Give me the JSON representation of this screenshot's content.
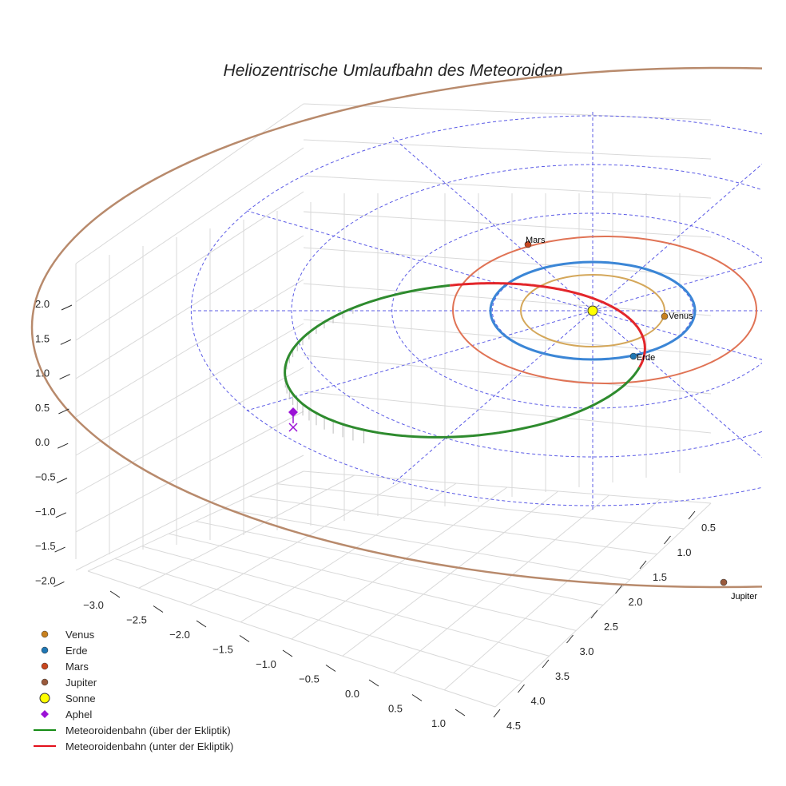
{
  "chart_data": {
    "type": "3d-line",
    "title": "Heliozentrische Umlaufbahn des Meteoroiden",
    "x_ticks": [
      "−3.0",
      "−2.5",
      "−2.0",
      "−1.5",
      "−1.0",
      "−0.5",
      "0.0",
      "0.5",
      "1.0"
    ],
    "y_ticks": [
      "0.5",
      "1.0",
      "1.5",
      "2.0",
      "2.5",
      "3.0",
      "3.5",
      "4.0",
      "4.5"
    ],
    "z_ticks": [
      "2.0",
      "1.5",
      "1.0",
      "0.5",
      "0.0",
      "−0.5",
      "−1.0",
      "−1.5",
      "−2.0"
    ],
    "xlim": [
      -3.0,
      1.0
    ],
    "ylim": [
      0.5,
      4.5
    ],
    "zlim": [
      -2.0,
      2.0
    ],
    "planets": [
      {
        "name": "Venus",
        "label": "Venus",
        "radius_au": 0.72,
        "color": "#c8811f"
      },
      {
        "name": "Erde",
        "label": "Erde",
        "radius_au": 1.0,
        "color": "#1f77b4"
      },
      {
        "name": "Mars",
        "label": "Mars",
        "radius_au": 1.52,
        "color": "#c8471f"
      },
      {
        "name": "Jupiter",
        "label": "Jupiter",
        "radius_au": 5.2,
        "color": "#9a5a3c"
      }
    ],
    "orbit_colors": {
      "Venus": "#d4a75a",
      "Erde": "#3b86d6",
      "Mars": "#e07355",
      "Jupiter": "#b88a6c"
    },
    "meteoroid": {
      "aphel_au": 3.0,
      "perihel_au": 0.4,
      "above_color": "#2e8b2e",
      "below_color": "#e3262b",
      "aphel_color": "#9b11d6"
    },
    "legend": [
      {
        "label": "Venus",
        "marker": "circle",
        "color": "#c8811f"
      },
      {
        "label": "Erde",
        "marker": "circle",
        "color": "#1f77b4"
      },
      {
        "label": "Mars",
        "marker": "circle",
        "color": "#c8471f"
      },
      {
        "label": "Jupiter",
        "marker": "circle",
        "color": "#9a5a3c"
      },
      {
        "label": "Sonne",
        "marker": "circle-large",
        "color": "#ffff00"
      },
      {
        "label": "Aphel",
        "marker": "diamond",
        "color": "#9b11d6"
      },
      {
        "label": "Meteoroidenbahn (über der Ekliptik)",
        "marker": "line",
        "color": "#168c16"
      },
      {
        "label": "Meteoroidenbahn (unter der Ekliptik)",
        "marker": "line",
        "color": "#e3101c"
      }
    ]
  }
}
